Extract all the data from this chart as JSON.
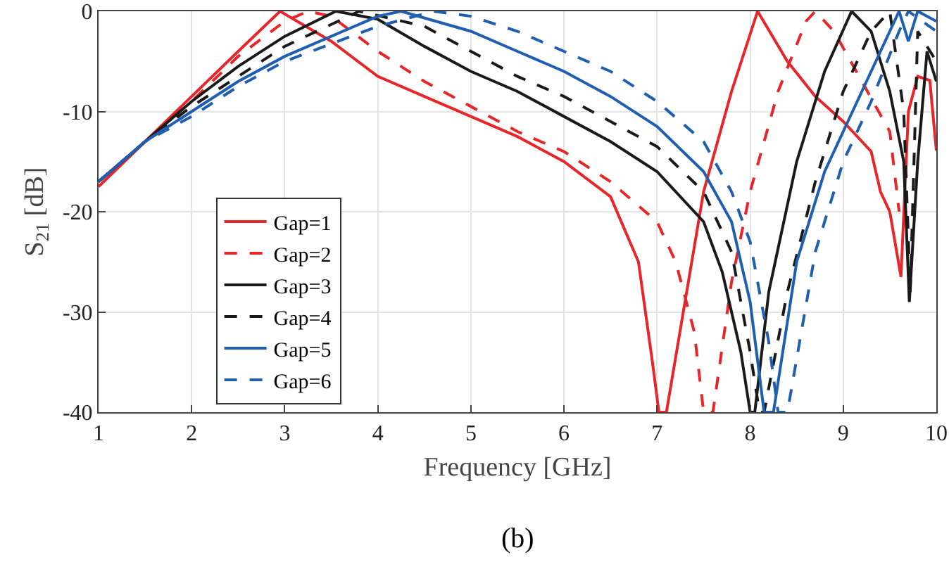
{
  "chart_data": {
    "type": "line",
    "xlabel": "Frequency [GHz]",
    "ylabel": "S$_{21}$ [dB]",
    "annotations": [
      "(b)"
    ],
    "xlim": [
      1,
      10
    ],
    "xticks": [
      1,
      2,
      3,
      4,
      5,
      6,
      7,
      8,
      9,
      10
    ],
    "ylim": [
      -40,
      0
    ],
    "yticks": [
      -40,
      -30,
      -20,
      -10,
      0
    ],
    "grid": true,
    "legend": "bottom left",
    "marker": "none",
    "series": [
      {
        "name": "Gap=1",
        "color": "#e8262a",
        "line_style": "solid",
        "x": [
          1,
          1.5,
          2,
          2.5,
          2.95,
          3.5,
          4,
          4.5,
          5,
          5.5,
          6,
          6.5,
          6.8,
          6.95,
          7.02,
          7.1,
          7.5,
          7.8,
          8.08,
          8.4,
          8.7,
          9,
          9.3,
          9.4,
          9.5,
          9.62,
          9.7,
          9.8,
          9.93,
          10
        ],
        "values": [
          -17.5,
          -13,
          -8.5,
          -4,
          0,
          -3,
          -6.5,
          -8.5,
          -10.5,
          -12.5,
          -15,
          -18.5,
          -25,
          -35,
          -40,
          -40,
          -18,
          -8,
          0,
          -5,
          -8.5,
          -11,
          -14,
          -18,
          -20,
          -26.5,
          -10,
          -6.5,
          -6.9,
          -13.9
        ]
      },
      {
        "name": "Gap=2",
        "color": "#e8262a",
        "line_style": "dashed",
        "x": [
          1,
          1.5,
          2,
          2.5,
          3,
          3.25,
          3.5,
          4,
          4.5,
          5,
          5.5,
          6,
          6.5,
          7,
          7.2,
          7.4,
          7.5,
          7.6,
          7.8,
          8,
          8.3,
          8.6,
          8.7,
          8.9,
          9.2,
          9.5,
          9.6
        ],
        "values": [
          -17,
          -13,
          -9,
          -4.5,
          -1,
          0,
          -0.5,
          -4,
          -7,
          -9.5,
          -12,
          -14,
          -17,
          -21,
          -25,
          -32,
          -40,
          -40,
          -27,
          -18,
          -8,
          -1,
          0,
          -2,
          -7,
          -12,
          -20
        ]
      },
      {
        "name": "Gap=3",
        "color": "#1a1a1a",
        "line_style": "solid",
        "x": [
          1,
          1.5,
          2,
          2.5,
          3,
          3.55,
          4,
          4.5,
          5,
          5.5,
          6,
          6.5,
          7,
          7.5,
          7.7,
          7.9,
          8,
          8.05,
          8.2,
          8.5,
          8.8,
          9.09,
          9.3,
          9.5,
          9.65,
          9.71,
          9.8,
          9.9,
          10
        ],
        "values": [
          -17,
          -13,
          -9,
          -5.5,
          -2.5,
          0,
          -0.8,
          -3.5,
          -6,
          -8,
          -10.5,
          -13,
          -16,
          -21,
          -26,
          -34,
          -40,
          -40,
          -28,
          -15,
          -6,
          0,
          -2,
          -8,
          -15,
          -29,
          -15,
          -4,
          -7
        ]
      },
      {
        "name": "Gap=4",
        "color": "#1a1a1a",
        "line_style": "dashed",
        "x": [
          1,
          1.5,
          2,
          2.5,
          3,
          3.8,
          4.5,
          5,
          5.5,
          6,
          6.5,
          7,
          7.5,
          7.8,
          8,
          8.1,
          8.15,
          8.4,
          8.7,
          9,
          9.3,
          9.5,
          9.65,
          9.72,
          9.8,
          10
        ],
        "values": [
          -17,
          -13,
          -9.5,
          -6.5,
          -3.5,
          0,
          -1.5,
          -4,
          -6.5,
          -8.5,
          -11,
          -13.5,
          -18,
          -24,
          -34,
          -40,
          -40,
          -28,
          -17,
          -8,
          -2,
          0,
          -10,
          -28,
          -2,
          -5
        ]
      },
      {
        "name": "Gap=5",
        "color": "#1f5eb0",
        "line_style": "solid",
        "x": [
          1,
          1.5,
          2,
          2.5,
          3,
          4,
          4.25,
          5,
          5.5,
          6,
          6.5,
          7,
          7.5,
          7.8,
          8,
          8.15,
          8.25,
          8.5,
          8.8,
          9.2,
          9.5,
          9.6,
          9.7,
          9.8,
          10
        ],
        "values": [
          -17,
          -13,
          -10,
          -7,
          -4.5,
          -0.5,
          0,
          -2,
          -4,
          -6,
          -8.5,
          -11.5,
          -16,
          -21,
          -29,
          -40,
          -40,
          -25,
          -16,
          -8,
          -2,
          0,
          -3,
          0,
          -1
        ]
      },
      {
        "name": "Gap=6",
        "color": "#1f5eb0",
        "line_style": "dashed",
        "x": [
          1,
          1.5,
          2,
          2.5,
          3,
          4,
          4.6,
          5,
          5.5,
          6,
          6.5,
          7,
          7.5,
          7.8,
          8,
          8.2,
          8.3,
          8.4,
          8.7,
          9,
          9.3,
          9.6,
          9.7,
          10
        ],
        "values": [
          -17,
          -13,
          -10.5,
          -7.5,
          -5,
          -1.5,
          0,
          -0.5,
          -2,
          -4,
          -6,
          -9,
          -13,
          -18,
          -23,
          -33,
          -40,
          -40,
          -24,
          -15,
          -9,
          -2,
          0,
          -2
        ]
      }
    ]
  }
}
